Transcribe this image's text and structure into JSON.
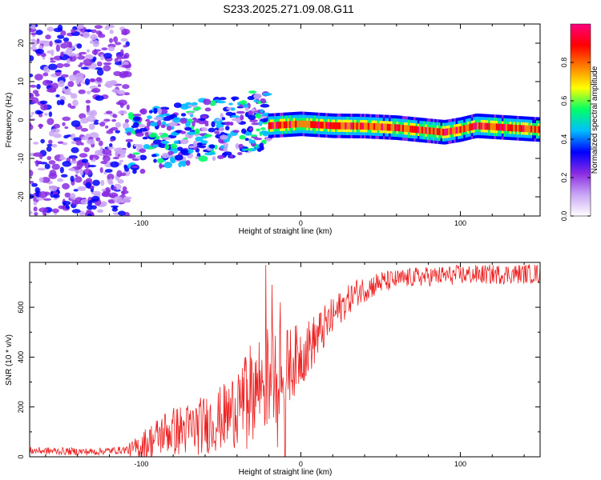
{
  "title": "S233.2025.271.09.08.G11",
  "chart_data": [
    {
      "type": "heatmap",
      "title": "S233.2025.271.09.08.G11",
      "xlabel": "Height of straight line (km)",
      "ylabel": "Frequency (Hz)",
      "xlim": [
        -170,
        150
      ],
      "ylim": [
        -25,
        25
      ],
      "x_ticks": [
        -100,
        0,
        100
      ],
      "y_ticks": [
        -20,
        -10,
        0,
        10,
        20
      ],
      "colorbar": {
        "label": "Normalized spectral amplitude",
        "range": [
          0,
          1
        ],
        "ticks": [
          0.0,
          0.2,
          0.4,
          0.6,
          0.8
        ],
        "tick_labels": [
          "0.0",
          "0.2",
          "0.4",
          "0.6",
          "0.8"
        ],
        "colors": [
          "#ffffff",
          "#c9a6f5",
          "#8a2be2",
          "#0000ff",
          "#00bfff",
          "#00ff66",
          "#ffff00",
          "#ff8000",
          "#ff0000",
          "#ff007f"
        ]
      },
      "features": [
        {
          "name": "noise",
          "x_range": [
            -170,
            -108
          ],
          "freq_range": [
            -25,
            25
          ],
          "amplitude": 0.2
        },
        {
          "name": "turbulent",
          "x_range": [
            -108,
            -20
          ],
          "freq_center_start": -6,
          "freq_center_end": 0,
          "amplitude": 0.35
        },
        {
          "name": "stable-tone",
          "x_range": [
            -20,
            150
          ],
          "freq_track": [
            [
              -20,
              -1.5
            ],
            [
              0,
              -1
            ],
            [
              20,
              -1.5
            ],
            [
              40,
              -1.6
            ],
            [
              60,
              -2
            ],
            [
              80,
              -2.8
            ],
            [
              90,
              -3.2
            ],
            [
              100,
              -2.5
            ],
            [
              110,
              -1.5
            ],
            [
              150,
              -2.5
            ]
          ],
          "amplitude": 0.85
        }
      ]
    },
    {
      "type": "line",
      "xlabel": "Height of straight line (km)",
      "ylabel": "SNR (10 * v/v)",
      "xlim": [
        -170,
        150
      ],
      "ylim": [
        0,
        780
      ],
      "x_ticks": [
        -100,
        0,
        100
      ],
      "y_ticks": [
        0,
        200,
        400,
        600
      ],
      "color": "#ee2222",
      "series": [
        {
          "name": "SNR",
          "profile": [
            [
              -170,
              25
            ],
            [
              -130,
              20
            ],
            [
              -105,
              30
            ],
            [
              -95,
              60
            ],
            [
              -85,
              100
            ],
            [
              -70,
              110
            ],
            [
              -55,
              140
            ],
            [
              -45,
              170
            ],
            [
              -35,
              240
            ],
            [
              -25,
              300
            ],
            [
              -15,
              330
            ],
            [
              -5,
              380
            ],
            [
              5,
              440
            ],
            [
              15,
              520
            ],
            [
              25,
              600
            ],
            [
              35,
              660
            ],
            [
              50,
              700
            ],
            [
              70,
              720
            ],
            [
              100,
              730
            ],
            [
              150,
              735
            ]
          ],
          "noise_profile": [
            [
              -170,
              15
            ],
            [
              -110,
              15
            ],
            [
              -100,
              60
            ],
            [
              -80,
              100
            ],
            [
              -50,
              130
            ],
            [
              -30,
              200
            ],
            [
              -20,
              220
            ],
            [
              -10,
              160
            ],
            [
              10,
              100
            ],
            [
              30,
              60
            ],
            [
              60,
              40
            ],
            [
              150,
              40
            ]
          ],
          "spikes": [
            [
              -22,
              770
            ],
            [
              -18,
              690
            ],
            [
              -13,
              620
            ],
            [
              -10,
              560
            ]
          ]
        }
      ]
    }
  ]
}
